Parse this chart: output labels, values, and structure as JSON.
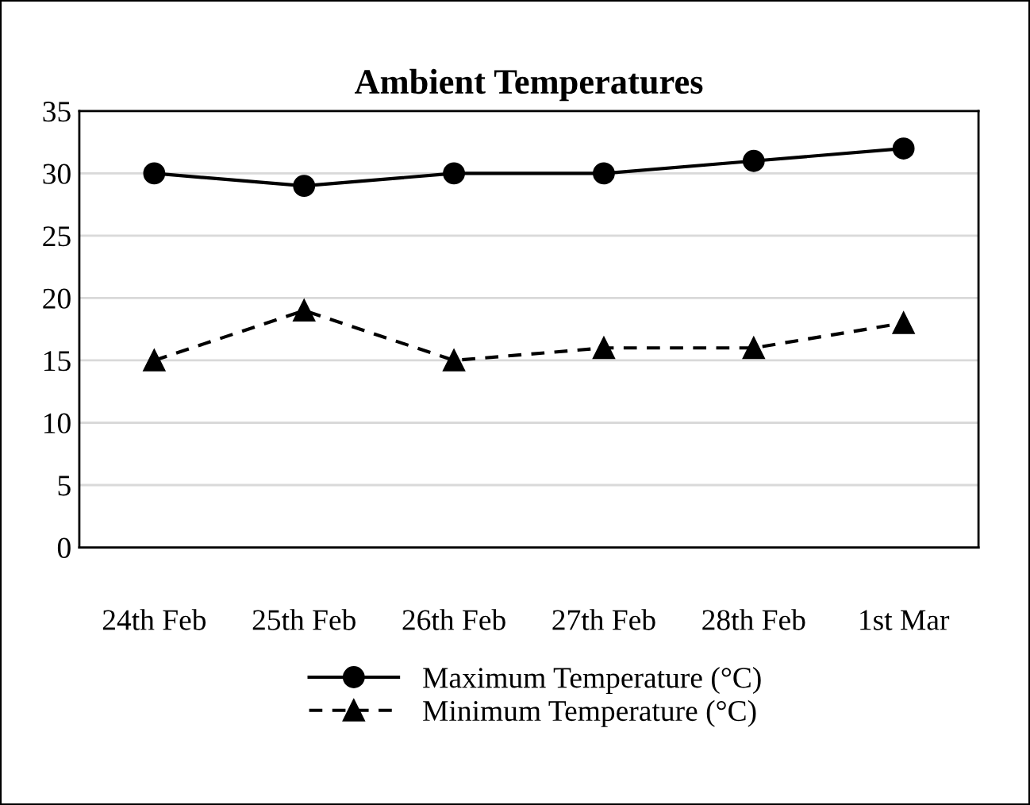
{
  "chart_data": {
    "type": "line",
    "title": "Ambient Temperatures",
    "categories": [
      "24th Feb",
      "25th Feb",
      "26th Feb",
      "27th Feb",
      "28th Feb",
      "1st Mar"
    ],
    "series": [
      {
        "name": "Maximum Temperature (°C)",
        "color": "#000000",
        "values": [
          30,
          29,
          30,
          30,
          31,
          32
        ],
        "marker": "circle",
        "line_style": "solid"
      },
      {
        "name": "Minimum Temperature (°C)",
        "color": "#000000",
        "values": [
          15,
          19,
          15,
          16,
          16,
          18
        ],
        "marker": "triangle",
        "line_style": "dashed"
      }
    ],
    "ylim": [
      0,
      35
    ],
    "yticks": [
      0,
      5,
      10,
      15,
      20,
      25,
      30,
      35
    ],
    "grid": "y",
    "legend": "bottom"
  }
}
